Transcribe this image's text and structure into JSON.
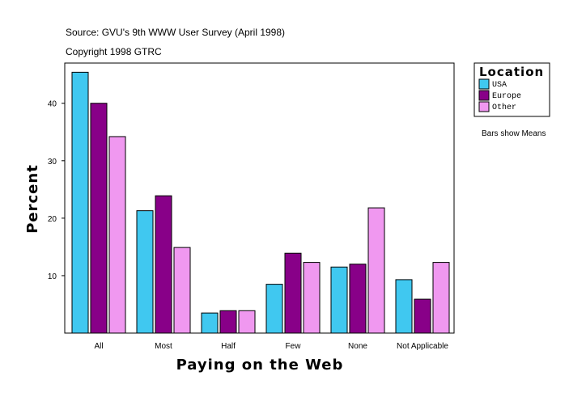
{
  "chart_data": {
    "type": "bar",
    "title": "Source: GVU's 9th WWW User Survey (April 1998)",
    "subtitle": "Copyright 1998 GTRC",
    "xlabel": "Paying on the Web",
    "ylabel": "Percent",
    "ylim": [
      0,
      47
    ],
    "yticks": [
      10,
      20,
      30,
      40
    ],
    "categories": [
      "All",
      "Most",
      "Half",
      "Few",
      "None",
      "Not Applicable"
    ],
    "series": [
      {
        "name": "USA",
        "color": "#40c8f0",
        "values": [
          45.4,
          21.3,
          3.5,
          8.5,
          11.5,
          9.3
        ]
      },
      {
        "name": "Europe",
        "color": "#880088",
        "values": [
          40.0,
          23.9,
          3.9,
          13.9,
          12.0,
          5.9
        ]
      },
      {
        "name": "Other",
        "color": "#f098f0",
        "values": [
          34.2,
          14.9,
          3.9,
          12.3,
          21.8,
          12.3
        ]
      }
    ],
    "legend": {
      "title": "Location",
      "placement": "right"
    },
    "note": "Bars show Means",
    "grid": false
  }
}
